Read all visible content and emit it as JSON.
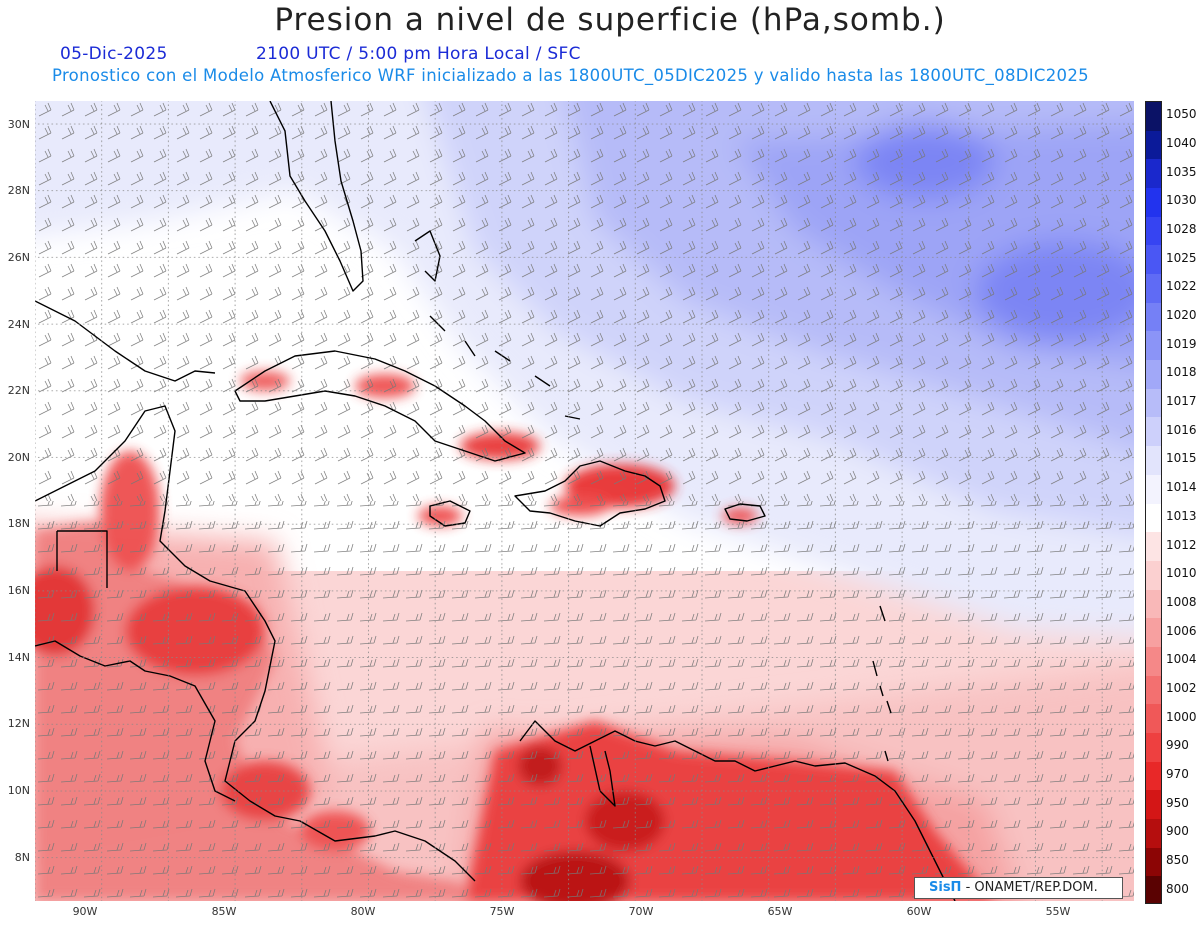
{
  "header": {
    "title": "Presion a nivel de superficie (hPa,somb.)",
    "date": "05-Dic-2025",
    "time_info": "2100 UTC / 5:00 pm Hora Local / SFC",
    "model_info": "Pronostico con el Modelo Atmosferico WRF inicializado a las 1800UTC_05DIC2025 y valido hasta las  1800UTC_08DIC2025"
  },
  "map": {
    "lat_labels": [
      "30N",
      "28N",
      "26N",
      "24N",
      "22N",
      "20N",
      "18N",
      "16N",
      "14N",
      "12N",
      "10N",
      "8N"
    ],
    "lon_labels": [
      "90W",
      "85W",
      "80W",
      "75W",
      "70W",
      "65W",
      "60W",
      "55W"
    ]
  },
  "colorbar": {
    "levels": [
      "1050",
      "1040",
      "1035",
      "1030",
      "1028",
      "1025",
      "1022",
      "1020",
      "1019",
      "1018",
      "1017",
      "1016",
      "1015",
      "1014",
      "1013",
      "1012",
      "1010",
      "1008",
      "1006",
      "1004",
      "1002",
      "1000",
      "990",
      "970",
      "950",
      "900",
      "850",
      "800"
    ],
    "colors": [
      "#0b1266",
      "#0b1a99",
      "#1a28cc",
      "#2233ee",
      "#3644f2",
      "#4a57f4",
      "#5f6bf5",
      "#7580f6",
      "#8b94f7",
      "#a1a8f8",
      "#b7bcf9",
      "#cdd0fb",
      "#e2e4fc",
      "#f3f3fe",
      "#ffffff",
      "#fde4e4",
      "#fbd0d0",
      "#f9b8b8",
      "#f7a0a0",
      "#f58888",
      "#f37070",
      "#f05858",
      "#ee4040",
      "#e82828",
      "#d41616",
      "#b50e0e",
      "#8c0505",
      "#5a0202"
    ]
  },
  "credit": {
    "logo": "SisΠ",
    "text": " - ONAMET/REP.DOM."
  }
}
